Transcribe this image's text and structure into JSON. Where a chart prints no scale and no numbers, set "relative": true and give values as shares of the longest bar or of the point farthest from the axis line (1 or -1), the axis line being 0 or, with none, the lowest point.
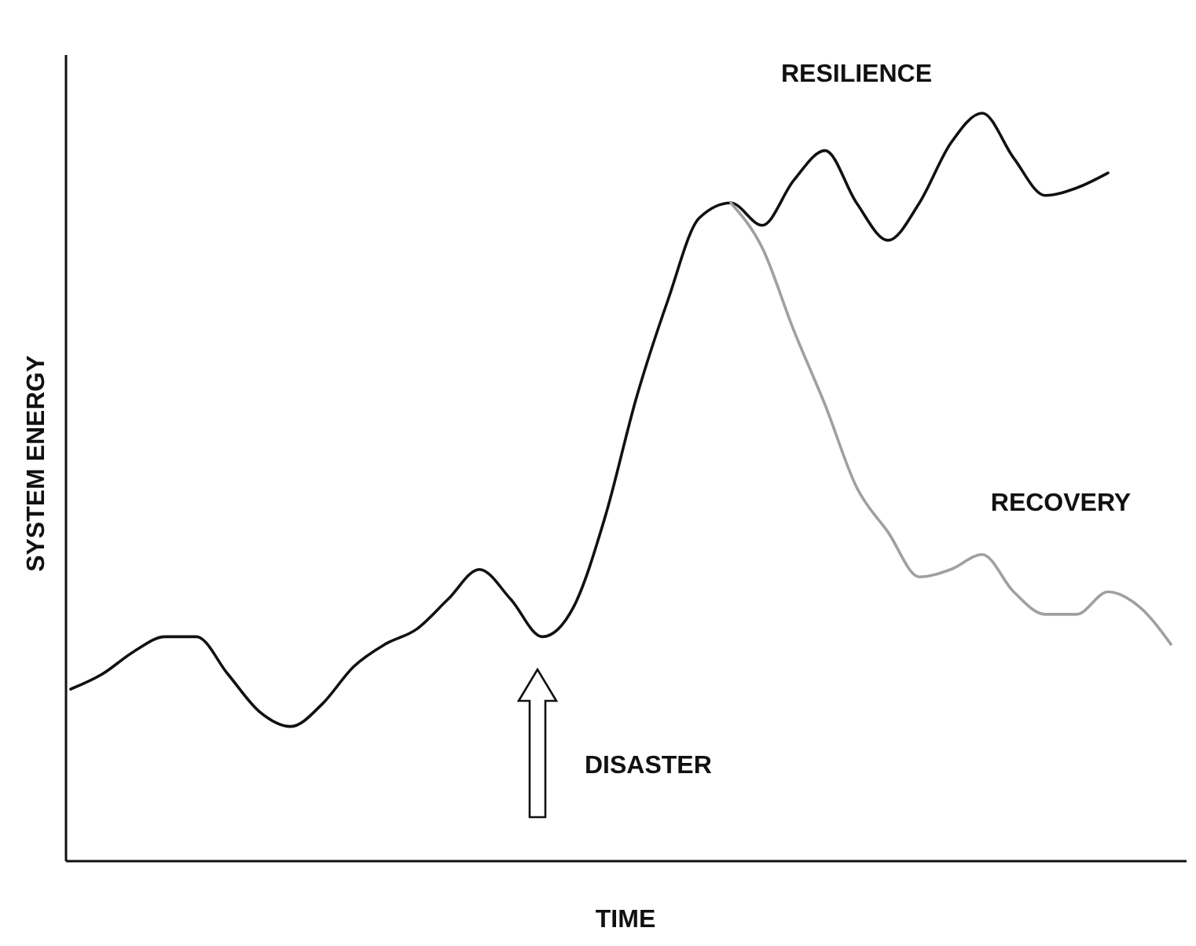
{
  "chart_data": {
    "type": "line",
    "relative": true,
    "xlabel": "TIME",
    "ylabel": "SYSTEM ENERGY",
    "legend": false,
    "annotations": [
      "DISASTER"
    ],
    "categories": [
      null,
      null,
      null,
      null,
      null,
      null,
      null,
      null,
      null,
      null,
      null,
      null,
      null,
      null,
      null,
      null,
      null,
      null,
      null,
      null,
      null,
      null,
      null,
      null,
      null,
      null,
      null,
      null,
      null,
      null,
      null,
      null,
      null,
      null,
      null,
      null
    ],
    "series": [
      {
        "name": "RESILIENCE",
        "color": "#111111",
        "values": [
          0.23,
          0.25,
          0.28,
          0.3,
          0.3,
          0.25,
          0.2,
          0.18,
          0.21,
          0.26,
          0.29,
          0.31,
          0.35,
          0.39,
          0.35,
          0.3,
          0.34,
          0.46,
          0.62,
          0.75,
          0.86,
          0.88,
          0.85,
          0.91,
          0.95,
          0.88,
          0.83,
          0.88,
          0.96,
          1.0,
          0.94,
          0.89,
          0.9,
          0.92,
          null,
          null
        ]
      },
      {
        "name": "RECOVERY",
        "color": "#a0a0a0",
        "values": [
          null,
          null,
          null,
          null,
          null,
          null,
          null,
          null,
          null,
          null,
          null,
          null,
          null,
          null,
          null,
          null,
          null,
          null,
          null,
          null,
          null,
          0.88,
          0.82,
          0.71,
          0.61,
          0.5,
          0.44,
          0.38,
          0.39,
          0.41,
          0.36,
          0.33,
          0.33,
          0.36,
          0.34,
          0.29
        ]
      }
    ]
  }
}
